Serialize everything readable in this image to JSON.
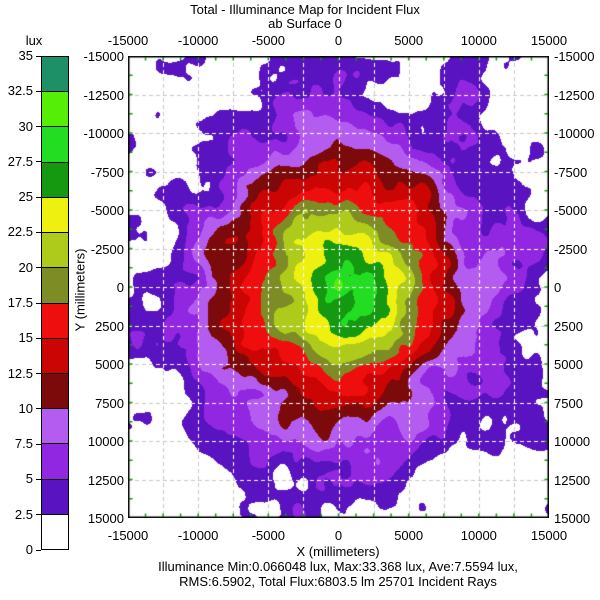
{
  "title": {
    "line1": "Total - Illuminance Map for Incident Flux",
    "line2": "ab Surface 0"
  },
  "colorbar": {
    "unit_label": "lux",
    "min": 0,
    "max": 35,
    "step": 2.5,
    "tick_labels_top_to_bottom": [
      "35",
      "32.5",
      "30",
      "27.5",
      "25",
      "22.5",
      "20",
      "17.5",
      "15",
      "12.5",
      "10",
      "7.5",
      "5",
      "2.5",
      "0"
    ],
    "colors_top_to_bottom": [
      "#1e9068",
      "#55ee06",
      "#22dd22",
      "#149910",
      "#eef010",
      "#aecb1c",
      "#7e8c26",
      "#ee0e0e",
      "#cb0404",
      "#7c0a0a",
      "#b55cf0",
      "#9227e2",
      "#5a13c0",
      "#ffffff"
    ]
  },
  "axes": {
    "x_label": "X (millimeters)",
    "y_label": "Y (millimeters)",
    "x_tick_labels": [
      "-15000",
      "-10000",
      "-5000",
      "0",
      "5000",
      "10000",
      "15000"
    ],
    "y_tick_labels": [
      "-15000",
      "-12500",
      "-10000",
      "-7500",
      "-5000",
      "-2500",
      "0",
      "2500",
      "5000",
      "7500",
      "10000",
      "12500",
      "15000"
    ],
    "x_range_mm": [
      -15000,
      15000
    ],
    "y_range_mm": [
      -15000,
      15000
    ],
    "grid_step_mm": 2500,
    "minor_tick_step_mm": 1250,
    "minor_tick_color": "#00a000",
    "grid_dash_color_on_data": "#ffffff",
    "grid_dash_color_on_background": "#c8c8c8"
  },
  "stats": {
    "line1": "Illuminance Min:0.066048 lux, Max:33.368 lux, Ave:7.5594 lux,",
    "line2": "RMS:6.5902, Total Flux:6803.5 lm 25701 Incident Rays"
  },
  "chart_data": {
    "type": "heatmap",
    "title": "Total - Illuminance Map for Incident Flux",
    "subtitle": "ab Surface 0",
    "xlabel": "X (millimeters)",
    "ylabel": "Y (millimeters)",
    "value_unit": "lux",
    "xlim": [
      -15000,
      15000
    ],
    "ylim": [
      -15000,
      15000
    ],
    "grid": true,
    "levels_lux": [
      0,
      2.5,
      5,
      7.5,
      10,
      12.5,
      15,
      17.5,
      20,
      22.5,
      25,
      27.5,
      30,
      32.5,
      35
    ],
    "level_colors_low_to_high": [
      "#ffffff",
      "#5a13c0",
      "#9227e2",
      "#b55cf0",
      "#7c0a0a",
      "#cb0404",
      "#ee0e0e",
      "#7e8c26",
      "#aecb1c",
      "#eef010",
      "#149910",
      "#22dd22",
      "#55ee06",
      "#1e9068"
    ],
    "stats": {
      "min_lux": 0.066048,
      "max_lux": 33.368,
      "ave_lux": 7.5594,
      "rms": 6.5902,
      "total_flux_lm": 6803.5,
      "incident_rays": 25701
    },
    "radial_profile_estimate": {
      "r_mm": [
        0,
        2500,
        5000,
        7500,
        10000,
        12500,
        15000
      ],
      "illuminance_lux": [
        33.4,
        26,
        19,
        13,
        8,
        4.5,
        2.2
      ]
    },
    "render_model": {
      "peak_lux": 29.3,
      "falloff_scale_mm": 8400,
      "falloff_exponent": 1.6,
      "center_bump": {
        "amp_lux": 3.8,
        "scale_mm": 500
      },
      "noise_octaves": [
        {
          "scale_mm": 3000,
          "amp_lux": 2.6,
          "ox": 0,
          "oy": 0
        },
        {
          "scale_mm": 1500,
          "amp_lux": 1.6,
          "ox": 37.7,
          "oy": 91.3
        },
        {
          "scale_mm": 750,
          "amp_lux": 0.9,
          "ox": 131.1,
          "oy": 57.9
        }
      ]
    }
  }
}
